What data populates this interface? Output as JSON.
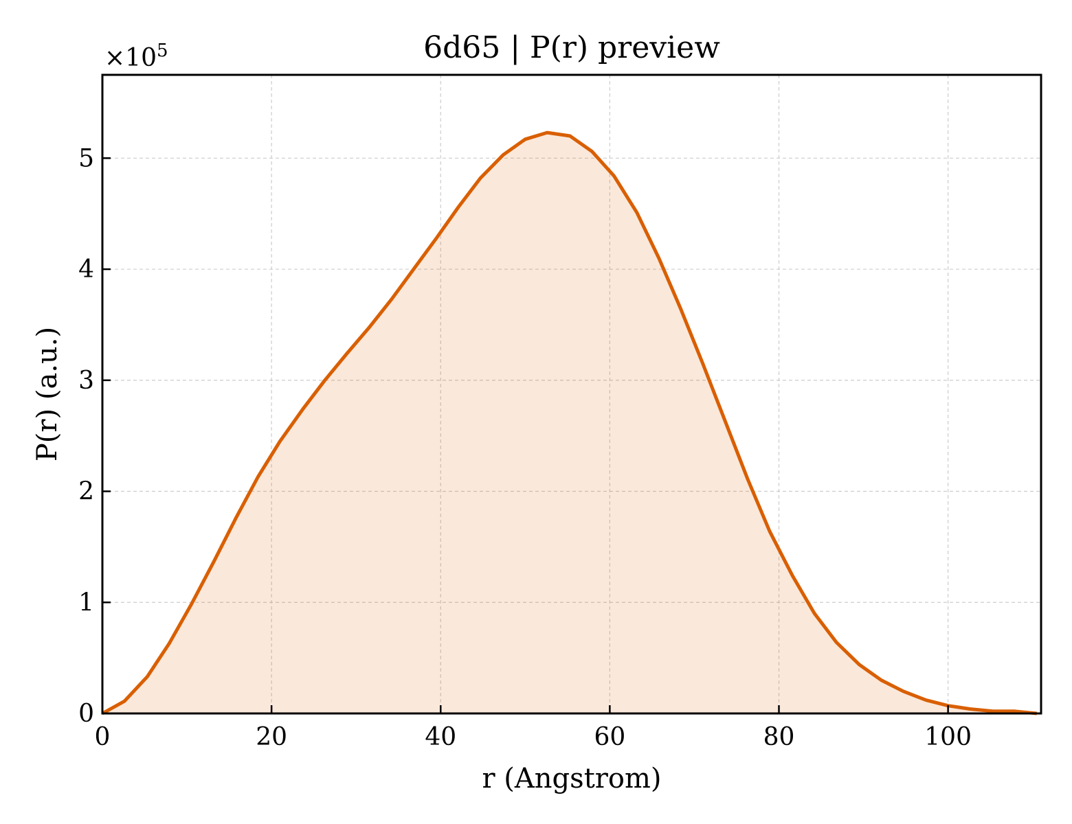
{
  "chart_data": {
    "type": "area",
    "title": "6d65 | P(r) preview",
    "xlabel": "r (Angstrom)",
    "ylabel": "P(r) (a.u.)",
    "y_multiplier_base": "×10",
    "y_multiplier_exp": "5",
    "xlim": [
      0,
      111
    ],
    "ylim": [
      0,
      5.75
    ],
    "xticks": [
      0,
      20,
      40,
      60,
      80,
      100
    ],
    "xtick_labels": [
      "0",
      "20",
      "40",
      "60",
      "80",
      "100"
    ],
    "yticks": [
      0,
      1,
      2,
      3,
      4,
      5
    ],
    "ytick_labels": [
      "0",
      "1",
      "2",
      "3",
      "4",
      "5"
    ],
    "grid": true,
    "line_color": "#d95f02",
    "fill_color": "#d95f02",
    "fill_opacity": 0.14,
    "series": [
      {
        "x": [
          0,
          2.6,
          5.3,
          7.9,
          10.5,
          13.2,
          15.8,
          18.4,
          21.0,
          23.7,
          26.3,
          28.9,
          31.6,
          34.2,
          36.8,
          39.5,
          42.1,
          44.7,
          47.4,
          50.0,
          52.6,
          55.3,
          57.9,
          60.5,
          63.2,
          65.8,
          68.4,
          71.0,
          73.7,
          76.3,
          78.9,
          81.6,
          84.2,
          86.8,
          89.5,
          92.1,
          94.7,
          97.4,
          100.0,
          102.6,
          105.3,
          107.9,
          110.5
        ],
        "y": [
          0.0,
          0.11,
          0.33,
          0.63,
          0.98,
          1.37,
          1.76,
          2.13,
          2.45,
          2.74,
          3.0,
          3.24,
          3.48,
          3.73,
          4.0,
          4.28,
          4.56,
          4.82,
          5.03,
          5.17,
          5.23,
          5.2,
          5.06,
          4.84,
          4.51,
          4.1,
          3.64,
          3.15,
          2.62,
          2.11,
          1.64,
          1.24,
          0.9,
          0.64,
          0.44,
          0.3,
          0.2,
          0.12,
          0.07,
          0.04,
          0.02,
          0.02,
          0.0
        ]
      }
    ]
  }
}
